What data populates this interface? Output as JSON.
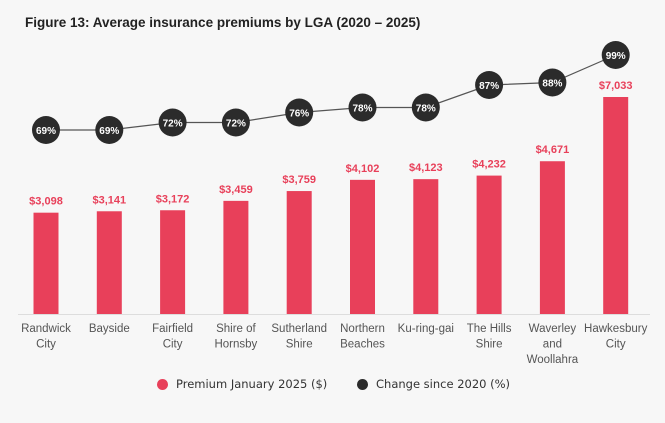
{
  "chart_data": {
    "type": "bar",
    "title": "Figure 13: Average insurance premiums by LGA (2020 – 2025)",
    "categories": [
      [
        "Randwick",
        "City"
      ],
      [
        "Bayside"
      ],
      [
        "Fairfield",
        "City"
      ],
      [
        "Shire of",
        "Hornsby"
      ],
      [
        "Sutherland",
        "Shire"
      ],
      [
        "Northern",
        "Beaches"
      ],
      [
        "Ku-ring-gai"
      ],
      [
        "The Hills",
        "Shire"
      ],
      [
        "Waverley",
        "and",
        "Woollahra"
      ],
      [
        "Hawkesbury",
        "City"
      ]
    ],
    "series": [
      {
        "name": "Premium January 2025 ($)",
        "type": "bar",
        "color": "#e8405a",
        "values": [
          3098,
          3141,
          3172,
          3459,
          3759,
          4102,
          4123,
          4232,
          4671,
          7033
        ],
        "labels": [
          "$3,098",
          "$3,141",
          "$3,172",
          "$3,459",
          "$3,759",
          "$4,102",
          "$4,123",
          "$4,232",
          "$4,671",
          "$7,033"
        ]
      },
      {
        "name": "Change since 2020 (%)",
        "type": "line",
        "color": "#2b2b2b",
        "values": [
          69,
          69,
          72,
          72,
          76,
          78,
          78,
          87,
          88,
          99
        ],
        "labels": [
          "69%",
          "69%",
          "72%",
          "72%",
          "76%",
          "78%",
          "78%",
          "87%",
          "88%",
          "99%"
        ]
      }
    ],
    "legend_position": "bottom",
    "grid": false
  }
}
